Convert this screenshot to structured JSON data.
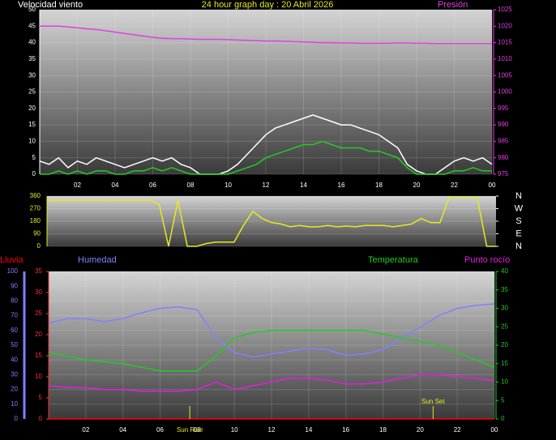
{
  "chart_data": [
    {
      "type": "line",
      "title": "24 hour graph day : 20 Abril 2026",
      "ylabel": "Velocidad viento",
      "y2label": "Presión",
      "x": [
        0,
        0.5,
        1,
        1.5,
        2,
        2.5,
        3,
        3.5,
        4,
        4.5,
        5,
        5.5,
        6,
        6.5,
        7,
        7.5,
        8,
        8.5,
        9,
        9.5,
        10,
        10.5,
        11,
        11.5,
        12,
        12.5,
        13,
        13.5,
        14,
        14.5,
        15,
        15.5,
        16,
        16.5,
        17,
        17.5,
        18,
        18.5,
        19,
        19.5,
        20,
        20.5,
        21,
        21.5,
        22,
        22.5,
        23,
        23.5,
        24
      ],
      "xlim": [
        0,
        24
      ],
      "xticks": [
        {
          "value": 2,
          "label": "02"
        },
        {
          "value": 4,
          "label": "04"
        },
        {
          "value": 6,
          "label": "06"
        },
        {
          "value": 8,
          "label": "08"
        },
        10,
        12,
        14,
        16,
        18,
        20,
        22,
        {
          "value": 24,
          "label": "00"
        }
      ],
      "ylim": [
        0,
        50
      ],
      "yticks": [
        0,
        5,
        10,
        15,
        20,
        25,
        30,
        35,
        40,
        45,
        50
      ],
      "y2lim": [
        975,
        1025
      ],
      "y2ticks": [
        975,
        980,
        985,
        990,
        995,
        1000,
        1005,
        1010,
        1015,
        1020,
        1025
      ],
      "grid": true,
      "series": [
        {
          "color": "#ffffff",
          "values": [
            4,
            3,
            5,
            2,
            4,
            3,
            5,
            4,
            3,
            2,
            3,
            4,
            5,
            4,
            5,
            3,
            2,
            0,
            0,
            0,
            1,
            3,
            6,
            9,
            12,
            14,
            15,
            16,
            17,
            18,
            17,
            16,
            15,
            15,
            14,
            13,
            12,
            10,
            8,
            3,
            1,
            0,
            0,
            2,
            4,
            5,
            4,
            5,
            3
          ]
        },
        {
          "color": "#22cc22",
          "values": [
            0,
            0,
            1,
            0,
            1,
            0,
            1,
            1,
            0,
            0,
            1,
            1,
            2,
            1,
            2,
            1,
            0,
            0,
            0,
            0,
            0,
            1,
            2,
            3,
            5,
            6,
            7,
            8,
            9,
            9,
            10,
            9,
            8,
            8,
            8,
            7,
            7,
            6,
            5,
            2,
            0,
            0,
            0,
            0,
            1,
            1,
            2,
            1,
            1
          ]
        },
        {
          "color": "#e040e0",
          "axis": "y2",
          "values": [
            1020,
            1020,
            1020,
            1019.8,
            1019.5,
            1019.2,
            1019,
            1018.6,
            1018.2,
            1017.8,
            1017.4,
            1017,
            1016.6,
            1016.3,
            1016.2,
            1016.2,
            1016.1,
            1016,
            1016,
            1016,
            1015.9,
            1015.8,
            1015.7,
            1015.6,
            1015.5,
            1015.5,
            1015.4,
            1015.3,
            1015.2,
            1015.1,
            1015,
            1015,
            1014.9,
            1014.9,
            1014.8,
            1014.8,
            1014.8,
            1014.8,
            1014.9,
            1014.9,
            1014.8,
            1014.8,
            1014.7,
            1014.7,
            1014.7,
            1014.7,
            1014.7,
            1014.7,
            1014.7
          ]
        }
      ]
    },
    {
      "type": "line",
      "x": [
        0,
        0.5,
        1,
        1.5,
        2,
        2.5,
        3,
        3.5,
        4,
        4.5,
        5,
        5.5,
        6,
        6.5,
        7,
        7.5,
        8,
        8.5,
        9,
        9.5,
        10,
        10.5,
        11,
        11.5,
        12,
        12.5,
        13,
        13.5,
        14,
        14.5,
        15,
        15.5,
        16,
        16.5,
        17,
        17.5,
        18,
        18.5,
        19,
        19.5,
        20,
        20.5,
        21,
        21.5,
        22,
        22.5,
        23,
        23.5,
        24
      ],
      "xlim": [
        0,
        24
      ],
      "ylim": [
        0,
        360
      ],
      "yticks": [
        0,
        90,
        180,
        270,
        360
      ],
      "y2lim": [
        0,
        360
      ],
      "y2ticks": [
        {
          "value": 0,
          "label": "N"
        },
        {
          "value": 90,
          "label": "E"
        },
        {
          "value": 180,
          "label": "S"
        },
        {
          "value": 270,
          "label": "W"
        },
        {
          "value": 360,
          "label": "N"
        }
      ],
      "grid": true,
      "series": [
        {
          "color": "#e8e820",
          "values": [
            330,
            330,
            330,
            330,
            330,
            330,
            330,
            330,
            330,
            330,
            330,
            330,
            300,
            0,
            330,
            0,
            0,
            20,
            30,
            30,
            30,
            150,
            250,
            200,
            170,
            160,
            140,
            150,
            140,
            140,
            150,
            140,
            145,
            140,
            150,
            150,
            150,
            140,
            150,
            160,
            200,
            170,
            170,
            350,
            350,
            350,
            350,
            0,
            0
          ]
        }
      ]
    },
    {
      "type": "line",
      "x": [
        0,
        1,
        2,
        3,
        4,
        5,
        6,
        7,
        8,
        9,
        10,
        11,
        12,
        13,
        14,
        15,
        16,
        17,
        18,
        19,
        20,
        21,
        22,
        23,
        24
      ],
      "xlim": [
        0,
        24
      ],
      "xticks": [
        {
          "value": 2,
          "label": "02"
        },
        {
          "value": 4,
          "label": "04"
        },
        {
          "value": 6,
          "label": "06"
        },
        {
          "value": 8,
          "label": "08"
        },
        10,
        12,
        14,
        16,
        18,
        20,
        22,
        {
          "value": 24,
          "label": "00"
        }
      ],
      "ylim": [
        0,
        100
      ],
      "yticks": [
        0,
        10,
        20,
        30,
        40,
        50,
        60,
        70,
        80,
        90,
        100
      ],
      "y2lim": [
        0,
        40
      ],
      "y2ticks": [
        0,
        5,
        10,
        15,
        20,
        25,
        30,
        35,
        40
      ],
      "y3lim": [
        0,
        35
      ],
      "y3ticks": [
        0,
        5,
        10,
        15,
        20,
        25,
        30,
        35
      ],
      "grid": true,
      "series": [
        {
          "name": "Lluvia",
          "color": "#ff0000",
          "axis": "y3",
          "values": [
            0,
            0,
            0,
            0,
            0,
            0,
            0,
            0,
            0,
            0,
            0,
            0,
            0,
            0,
            0,
            0,
            0,
            0,
            0,
            0,
            0,
            0,
            0,
            0,
            0
          ]
        },
        {
          "name": "Humedad",
          "color": "#8080ff",
          "axis": "y",
          "values": [
            65,
            68,
            68,
            66,
            68,
            72,
            75,
            76,
            74,
            55,
            45,
            42,
            44,
            46,
            48,
            47,
            43,
            44,
            47,
            55,
            62,
            70,
            75,
            77,
            78
          ]
        },
        {
          "name": "Temperatura",
          "color": "#22cc22",
          "axis": "y2",
          "values": [
            18,
            17,
            16,
            15.5,
            15,
            14,
            13,
            13,
            13,
            17,
            22,
            23.5,
            24,
            24,
            24,
            24,
            24,
            24,
            23,
            22,
            21,
            20,
            18,
            16,
            14
          ]
        },
        {
          "name": "Punto rocío",
          "color": "#e020e0",
          "axis": "y2",
          "values": [
            9,
            8.5,
            8.5,
            8,
            8,
            7.5,
            7.5,
            7.5,
            8,
            10,
            8,
            9,
            10,
            11,
            11,
            10.5,
            9.5,
            9.5,
            10,
            11,
            12,
            12,
            11.5,
            11,
            10.3
          ]
        }
      ],
      "annotations": [
        {
          "text": "Sun Rise",
          "x": 7.6
        },
        {
          "text": "Sun Set",
          "x": 20.7
        }
      ]
    }
  ]
}
